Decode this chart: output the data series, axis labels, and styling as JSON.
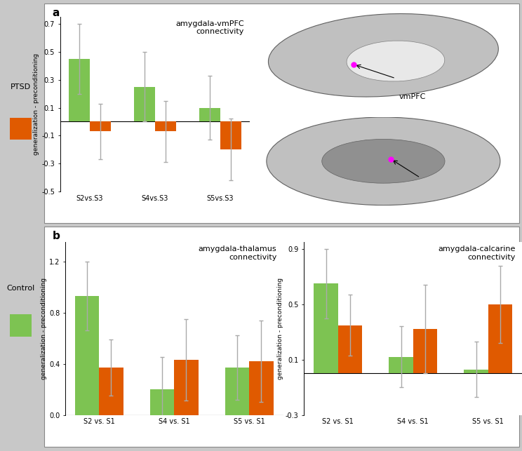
{
  "panel_a": {
    "title": "amygdala-vmPFC\nconnectivity",
    "ylabel": "generalization - preconditioning",
    "categories": [
      "S2vs.S3",
      "S4vs.S3",
      "S5vs.S3"
    ],
    "green_values": [
      0.45,
      0.25,
      0.1
    ],
    "orange_values": [
      -0.07,
      -0.07,
      -0.2
    ],
    "green_errors": [
      0.25,
      0.25,
      0.23
    ],
    "orange_errors": [
      0.2,
      0.22,
      0.22
    ],
    "ylim": [
      -0.5,
      0.75
    ],
    "yticks": [
      -0.5,
      -0.3,
      -0.1,
      0.1,
      0.3,
      0.5,
      0.7
    ]
  },
  "panel_b_left": {
    "title": "amygdala-thalamus\nconnectivity",
    "ylabel": "generalization - preconditioning",
    "categories": [
      "S2 vs. S1",
      "S4 vs. S1",
      "S5 vs. S1"
    ],
    "green_values": [
      0.93,
      0.2,
      0.37
    ],
    "orange_values": [
      0.37,
      0.43,
      0.42
    ],
    "green_errors": [
      0.27,
      0.25,
      0.25
    ],
    "orange_errors": [
      0.22,
      0.32,
      0.32
    ],
    "ylim": [
      0.0,
      1.35
    ],
    "yticks": [
      0.0,
      0.4,
      0.8,
      1.2
    ]
  },
  "panel_b_right": {
    "title": "amygdala-calcarine\nconnectivity",
    "ylabel": "generalization - preconditioning",
    "categories": [
      "S2 vs. S1",
      "S4 vs. S1",
      "S5 vs. S1"
    ],
    "green_values": [
      0.65,
      0.12,
      0.03
    ],
    "orange_values": [
      0.35,
      0.32,
      0.5
    ],
    "green_errors": [
      0.25,
      0.22,
      0.2
    ],
    "orange_errors": [
      0.22,
      0.32,
      0.28
    ],
    "ylim": [
      -0.3,
      0.95
    ],
    "yticks": [
      -0.3,
      0.1,
      0.5,
      0.9
    ]
  },
  "colors": {
    "green": "#7DC352",
    "orange": "#E05A00",
    "background": "#C8C8C8",
    "panel_bg": "#FFFFFF",
    "error_color": "#AAAAAA"
  },
  "sidebar_top": {
    "label": "PTSD",
    "color": "#E05A00"
  },
  "sidebar_bot": {
    "label": "Control",
    "color": "#7DC352"
  }
}
